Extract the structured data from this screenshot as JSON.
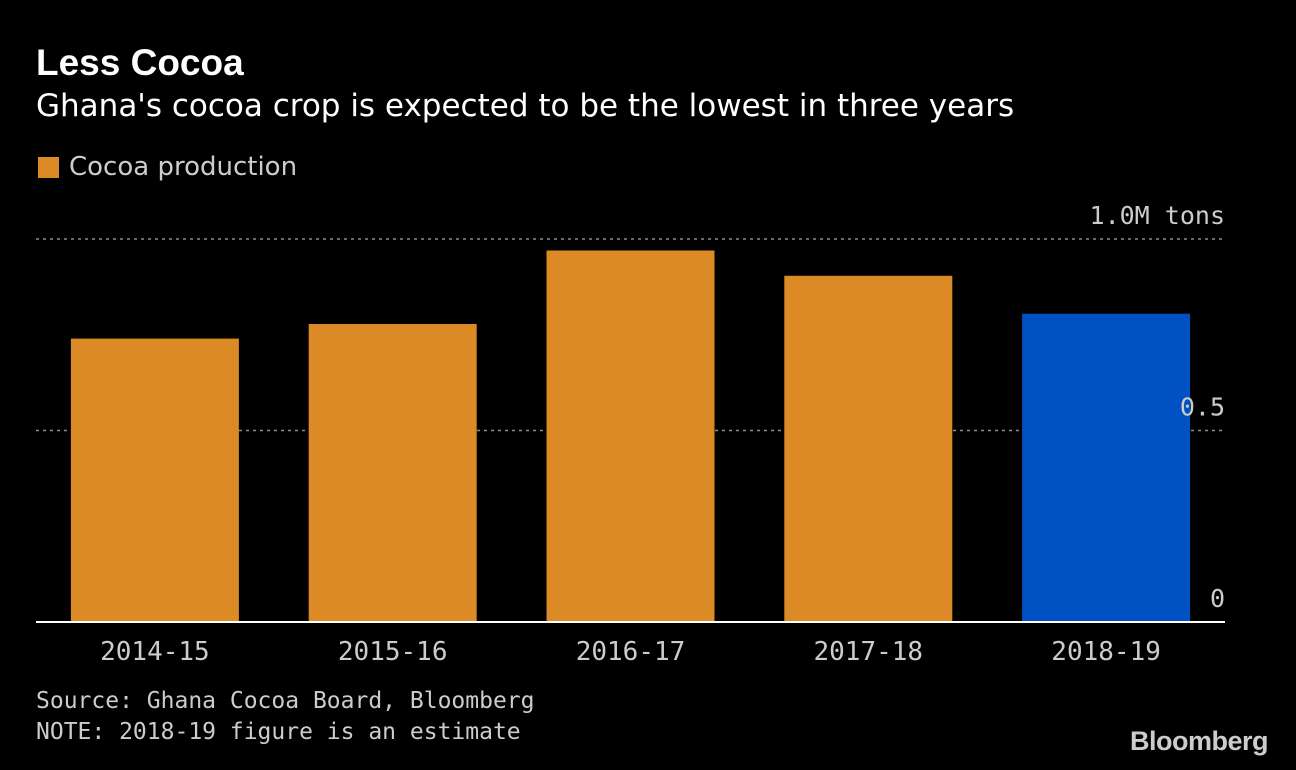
{
  "title": "Less Cocoa",
  "subtitle": "Ghana's cocoa crop is expected to be the lowest in three years",
  "legend": {
    "label": "Cocoa production",
    "color": "#dc8a25"
  },
  "source": {
    "line1": "Source: Ghana Cocoa Board, Bloomberg",
    "line2": "NOTE: 2018-19 figure is an estimate"
  },
  "logo": "Bloomberg",
  "colors": {
    "bar": "#dc8a25",
    "estimate_bar": "#0051c2",
    "background": "#000000",
    "grid": "#8c8c8c",
    "axis": "#ffffff",
    "text": "#cccccc"
  },
  "chart_data": {
    "type": "bar",
    "title": "Less Cocoa",
    "subtitle": "Ghana's cocoa crop is expected to be the lowest in three years",
    "categories": [
      "2014-15",
      "2015-16",
      "2016-17",
      "2017-18",
      "2018-19"
    ],
    "series": [
      {
        "name": "Cocoa production",
        "values": [
          0.74,
          0.778,
          0.97,
          0.904,
          0.805
        ]
      }
    ],
    "highlight": {
      "category": "2018-19",
      "color": "#0051c2"
    },
    "ylim": [
      0,
      1.0
    ],
    "yticks": [
      {
        "value": 0,
        "label": "0"
      },
      {
        "value": 0.5,
        "label": "0.5"
      },
      {
        "value": 1.0,
        "label": "1.0M tons"
      }
    ],
    "y_unit": "M tons",
    "grid": true,
    "legend_position": "top-left",
    "xlabel": "",
    "ylabel": ""
  }
}
